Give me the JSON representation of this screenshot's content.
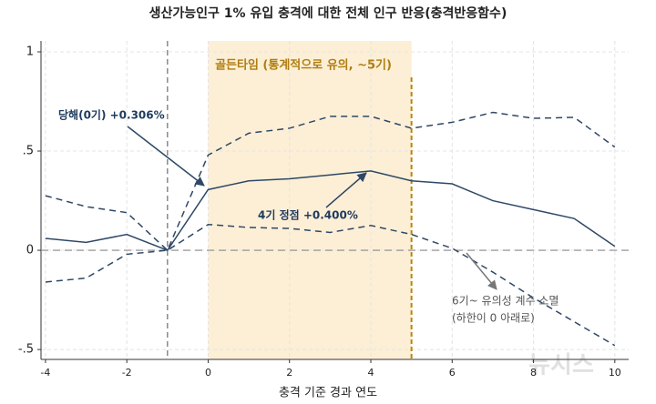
{
  "chart_data": {
    "type": "line",
    "title": "생산가능인구 1% 유입 충격에 대한 전체 인구 반응(충격반응함수)",
    "x_label": "충격 기준 경과 연도",
    "x": [
      -4,
      -3,
      -2,
      -1,
      0,
      1,
      2,
      3,
      4,
      5,
      6,
      7,
      8,
      9,
      10
    ],
    "series": [
      {
        "color": "#2e4866",
        "dashed": false,
        "values": [
          0.06,
          0.04,
          0.08,
          0,
          0.306,
          0.35,
          0.36,
          0.38,
          0.4,
          0.35,
          0.335,
          0.25,
          0.205,
          0.16,
          0.02
        ]
      },
      {
        "color": "#2e4866",
        "dashed": true,
        "values": [
          0.275,
          0.22,
          0.19,
          0,
          0.48,
          0.59,
          0.615,
          0.675,
          0.675,
          0.615,
          0.645,
          0.695,
          0.665,
          0.67,
          0.52
        ]
      },
      {
        "color": "#2e4866",
        "dashed": true,
        "values": [
          -0.16,
          -0.14,
          -0.02,
          0,
          0.13,
          0.115,
          0.11,
          0.09,
          0.125,
          0.08,
          0.01,
          -0.11,
          -0.24,
          -0.36,
          -0.48
        ]
      }
    ],
    "xlim": [
      -4.11,
      10.34
    ],
    "ylim": [
      -0.55,
      1.055
    ],
    "xticks": [
      -4,
      -2,
      0,
      2,
      4,
      6,
      8,
      10
    ],
    "yticks": [
      {
        "value": -0.5,
        "label": "-.5"
      },
      0,
      {
        "value": 0.5,
        "label": ".5"
      },
      1
    ],
    "grid": true,
    "shade_x": [
      0,
      5
    ],
    "shade_color": "#fcefd6",
    "shock_line_x": -1,
    "window_end_x": 5,
    "zero_line_y": 0,
    "annotations": [
      "골든타임 (통계적으로 유의, ~5기)",
      "당해(0기) +0.306%",
      "4기 정점 +0.400%",
      "6기~ 유의성 계수 소멸",
      "(하한이 0 아래로)"
    ],
    "watermark": "뉴시스"
  }
}
